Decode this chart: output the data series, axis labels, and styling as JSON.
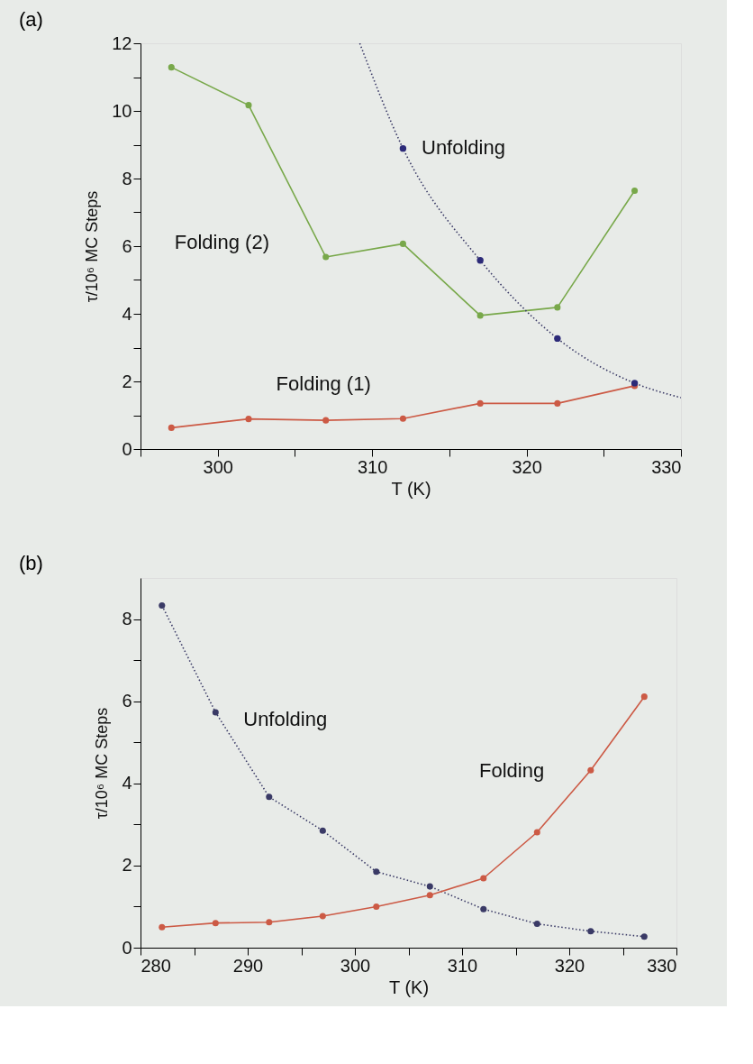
{
  "chart_data": [
    {
      "type": "line",
      "title": "(a)",
      "xlabel": "T (K)",
      "ylabel": "τ/10⁶ MC Steps",
      "xlim": [
        295,
        330
      ],
      "xticks": [
        {
          "value": 295,
          "label": null
        },
        300,
        {
          "value": 305,
          "label": null
        },
        310,
        {
          "value": 315,
          "label": null
        },
        320,
        {
          "value": 325,
          "label": null
        },
        330
      ],
      "ylim": [
        0,
        12
      ],
      "yticks": [
        0,
        {
          "value": 1,
          "label": null
        },
        2,
        {
          "value": 3,
          "label": null
        },
        4,
        {
          "value": 5,
          "label": null
        },
        6,
        {
          "value": 7,
          "label": null
        },
        8,
        {
          "value": 9,
          "label": null
        },
        10,
        {
          "value": 11,
          "label": null
        },
        12
      ],
      "grid": false,
      "series": [
        {
          "name": "Folding (2)",
          "color": "#78a84a",
          "marker": "circle",
          "line_style": "solid",
          "x": [
            297,
            302,
            307,
            312,
            317,
            322,
            327
          ],
          "values": [
            11.29,
            10.17,
            5.68,
            6.07,
            3.95,
            4.19,
            7.64
          ]
        },
        {
          "name": "Folding (1)",
          "color": "#cc5a45",
          "marker": "circle",
          "line_style": "solid",
          "x": [
            297,
            302,
            307,
            312,
            317,
            322,
            327
          ],
          "values": [
            0.63,
            0.89,
            0.85,
            0.9,
            1.35,
            1.35,
            1.87
          ]
        },
        {
          "color": "#3a3a66",
          "marker": "none",
          "line_style": "dotted",
          "x": [
            309.2,
            312,
            317,
            322,
            327,
            330
          ],
          "values": [
            12,
            8.89,
            5.58,
            3.27,
            1.95,
            1.52
          ]
        },
        {
          "name": "Unfolding",
          "type": "scatter",
          "color": "#2c2a78",
          "marker": "circle",
          "x": [
            312,
            317,
            322,
            327
          ],
          "values": [
            8.89,
            5.58,
            3.27,
            1.95
          ]
        }
      ]
    },
    {
      "type": "line",
      "title": "(b)",
      "xlabel": "T (K)",
      "ylabel": "τ/10⁶ MC Steps",
      "xlim": [
        280,
        330
      ],
      "xticks": [
        280,
        {
          "value": 285,
          "label": null
        },
        290,
        {
          "value": 295,
          "label": null
        },
        300,
        {
          "value": 305,
          "label": null
        },
        310,
        {
          "value": 315,
          "label": null
        },
        320,
        {
          "value": 325,
          "label": null
        },
        330
      ],
      "ylim": [
        0,
        9
      ],
      "yticks": [
        0,
        {
          "value": 1,
          "label": null
        },
        2,
        {
          "value": 3,
          "label": null
        },
        4,
        {
          "value": 5,
          "label": null
        },
        6,
        {
          "value": 7,
          "label": null
        },
        8
      ],
      "grid": false,
      "series": [
        {
          "name": "Unfolding",
          "color": "#3a3a66",
          "marker": "circle",
          "line_style": "dotted",
          "x": [
            282,
            287,
            292,
            297,
            302,
            307,
            312,
            317,
            322,
            327
          ],
          "values": [
            8.33,
            5.73,
            3.67,
            2.85,
            1.85,
            1.49,
            0.94,
            0.58,
            0.4,
            0.27
          ]
        },
        {
          "name": "Folding",
          "color": "#cc5a45",
          "marker": "circle",
          "line_style": "solid",
          "x": [
            282,
            287,
            292,
            297,
            302,
            307,
            312,
            317,
            322,
            327
          ],
          "values": [
            0.5,
            0.6,
            0.62,
            0.77,
            1.0,
            1.28,
            1.69,
            2.81,
            4.32,
            6.11
          ]
        }
      ]
    }
  ]
}
